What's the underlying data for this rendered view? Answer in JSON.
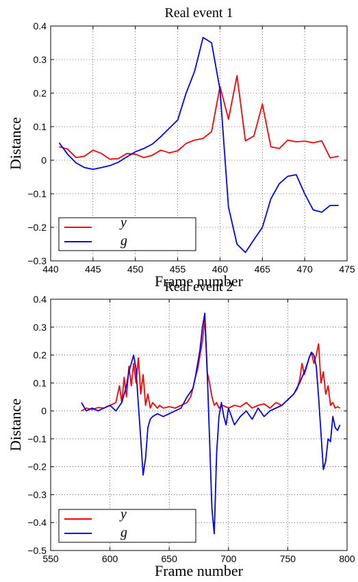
{
  "chart_data": [
    {
      "type": "line",
      "title": "Real event 1",
      "xlabel": "Frame number",
      "ylabel": "Distance",
      "xlim": [
        440,
        475
      ],
      "ylim": [
        -0.3,
        0.4
      ],
      "xticks": [
        "440",
        "445",
        "450",
        "455",
        "460",
        "465",
        "470",
        "475"
      ],
      "yticks": [
        "−0.3",
        "−0.2",
        "−0.1",
        "0",
        "0.1",
        "0.2",
        "0.3",
        "0.4"
      ],
      "grid": true,
      "legend_position": "bottom-left",
      "series": [
        {
          "name": "y",
          "color": "#ff0000",
          "x": [
            441,
            442,
            443,
            444,
            445,
            446,
            447,
            448,
            449,
            450,
            451,
            452,
            453,
            454,
            455,
            456,
            457,
            458,
            459,
            460,
            461,
            462,
            463,
            464,
            465,
            466,
            467,
            468,
            469,
            470,
            471,
            472,
            473,
            474
          ],
          "values": [
            0.04,
            0.033,
            0.008,
            0.012,
            0.03,
            0.02,
            0.003,
            0.005,
            0.02,
            0.018,
            0.008,
            0.015,
            0.03,
            0.022,
            0.028,
            0.05,
            0.06,
            0.065,
            0.085,
            0.22,
            0.122,
            0.252,
            0.058,
            0.072,
            0.167,
            0.04,
            0.035,
            0.06,
            0.055,
            0.057,
            0.052,
            0.058,
            0.007,
            0.012
          ]
        },
        {
          "name": "g",
          "color": "#0000ff",
          "x": [
            441,
            442,
            443,
            444,
            445,
            446,
            447,
            448,
            449,
            450,
            451,
            452,
            453,
            454,
            455,
            456,
            457,
            458,
            459,
            460,
            461,
            462,
            463,
            464,
            465,
            466,
            467,
            468,
            469,
            470,
            471,
            472,
            473,
            474
          ],
          "values": [
            0.052,
            0.018,
            -0.008,
            -0.022,
            -0.027,
            -0.022,
            -0.016,
            -0.006,
            0.01,
            0.025,
            0.035,
            0.048,
            0.07,
            0.095,
            0.12,
            0.2,
            0.265,
            0.366,
            0.35,
            0.21,
            -0.14,
            -0.25,
            -0.275,
            -0.237,
            -0.2,
            -0.115,
            -0.07,
            -0.048,
            -0.043,
            -0.1,
            -0.148,
            -0.155,
            -0.135,
            -0.135
          ]
        }
      ]
    },
    {
      "type": "line",
      "title": "Real event 2",
      "xlabel": "Frame number",
      "ylabel": "Distance",
      "xlim": [
        550,
        800
      ],
      "ylim": [
        -0.5,
        0.4
      ],
      "xticks": [
        "550",
        "600",
        "650",
        "700",
        "750",
        "800"
      ],
      "yticks": [
        "−0.5",
        "−0.4",
        "−0.3",
        "−0.2",
        "−0.1",
        "0",
        "0.1",
        "0.2",
        "0.3",
        "0.4"
      ],
      "grid": true,
      "legend_position": "bottom-left",
      "series": [
        {
          "name": "y",
          "color": "#ff0000",
          "x": [
            576,
            580,
            585,
            590,
            595,
            600,
            605,
            608,
            610,
            612,
            614,
            616,
            618,
            620,
            622,
            624,
            626,
            628,
            630,
            632,
            634,
            636,
            638,
            640,
            642,
            645,
            650,
            655,
            660,
            665,
            668,
            670,
            672,
            674,
            676,
            678,
            680,
            682,
            684,
            686,
            688,
            690,
            692,
            695,
            700,
            705,
            710,
            715,
            720,
            725,
            730,
            735,
            740,
            745,
            750,
            755,
            758,
            760,
            762,
            764,
            766,
            768,
            770,
            772,
            774,
            776,
            778,
            780,
            782,
            784,
            786,
            788,
            790,
            792,
            794
          ],
          "values": [
            0.0,
            0.01,
            0.005,
            0.012,
            0.01,
            0.02,
            0.03,
            0.09,
            0.03,
            0.12,
            0.05,
            0.16,
            0.09,
            0.17,
            0.1,
            0.19,
            0.06,
            0.13,
            0.02,
            0.06,
            0.01,
            0.03,
            0.02,
            0.01,
            0.02,
            0.01,
            0.015,
            0.01,
            0.02,
            0.03,
            0.05,
            0.08,
            0.12,
            0.15,
            0.2,
            0.25,
            0.33,
            0.14,
            0.1,
            0.05,
            0.02,
            0.03,
            0.01,
            0.02,
            0.01,
            0.02,
            0.015,
            0.03,
            0.01,
            0.02,
            0.025,
            0.01,
            0.03,
            0.02,
            0.04,
            0.06,
            0.08,
            0.11,
            0.17,
            0.13,
            0.16,
            0.19,
            0.21,
            0.17,
            0.2,
            0.24,
            0.1,
            0.14,
            0.06,
            0.09,
            0.02,
            0.03,
            0.01,
            0.015,
            0.01
          ]
        },
        {
          "name": "g",
          "color": "#0000ff",
          "x": [
            576,
            580,
            585,
            590,
            595,
            600,
            605,
            610,
            612,
            614,
            616,
            618,
            620,
            622,
            624,
            626,
            628,
            630,
            632,
            634,
            636,
            640,
            645,
            650,
            655,
            660,
            665,
            670,
            672,
            674,
            676,
            678,
            680,
            682,
            684,
            686,
            688,
            690,
            692,
            694,
            696,
            698,
            700,
            705,
            710,
            715,
            720,
            725,
            730,
            735,
            740,
            745,
            750,
            755,
            760,
            765,
            768,
            770,
            772,
            774,
            776,
            778,
            780,
            782,
            784,
            786,
            788,
            790,
            792,
            794
          ],
          "values": [
            0.03,
            0.0,
            0.01,
            0.0,
            0.01,
            0.02,
            0.0,
            0.03,
            0.06,
            0.09,
            0.14,
            0.17,
            0.2,
            0.15,
            0.02,
            -0.1,
            -0.23,
            -0.17,
            -0.06,
            -0.03,
            -0.02,
            -0.01,
            -0.02,
            -0.01,
            0.0,
            0.01,
            0.05,
            0.08,
            0.12,
            0.17,
            0.22,
            0.3,
            0.35,
            0.15,
            -0.1,
            -0.35,
            -0.44,
            -0.15,
            -0.02,
            0.03,
            -0.02,
            -0.05,
            0.01,
            -0.05,
            -0.02,
            0.0,
            -0.03,
            0.01,
            -0.02,
            0.0,
            0.01,
            0.02,
            0.04,
            0.06,
            0.1,
            0.15,
            0.19,
            0.21,
            0.2,
            0.16,
            0.05,
            -0.08,
            -0.21,
            -0.18,
            -0.1,
            -0.11,
            -0.02,
            -0.06,
            -0.07,
            -0.05
          ]
        }
      ]
    }
  ]
}
